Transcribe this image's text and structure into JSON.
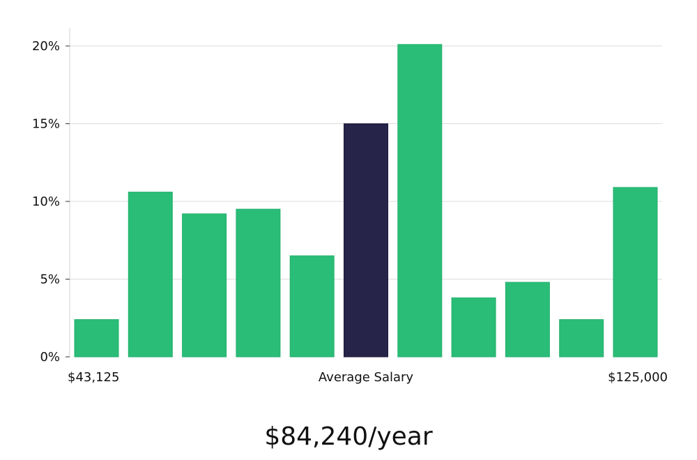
{
  "chart_data": {
    "type": "bar",
    "title": "",
    "xlabel": "Average Salary",
    "ylabel": "",
    "ylim": [
      0,
      21
    ],
    "yticks": [
      0,
      5,
      10,
      15,
      20
    ],
    "ytick_labels": [
      "0%",
      "5%",
      "10%",
      "15%",
      "20%"
    ],
    "x_range_labels": {
      "min": "$43,125",
      "max": "$125,000"
    },
    "values": [
      2.4,
      10.6,
      9.2,
      9.5,
      6.5,
      15.0,
      20.1,
      3.8,
      4.8,
      2.4,
      10.9
    ],
    "highlight_index": 5,
    "grid": true
  },
  "colors": {
    "bar": "#2abd77",
    "highlight": "#27244a",
    "grid": "#dcdcdc",
    "axis": "#d0d0d0"
  },
  "salary_caption": "$84,240/year"
}
